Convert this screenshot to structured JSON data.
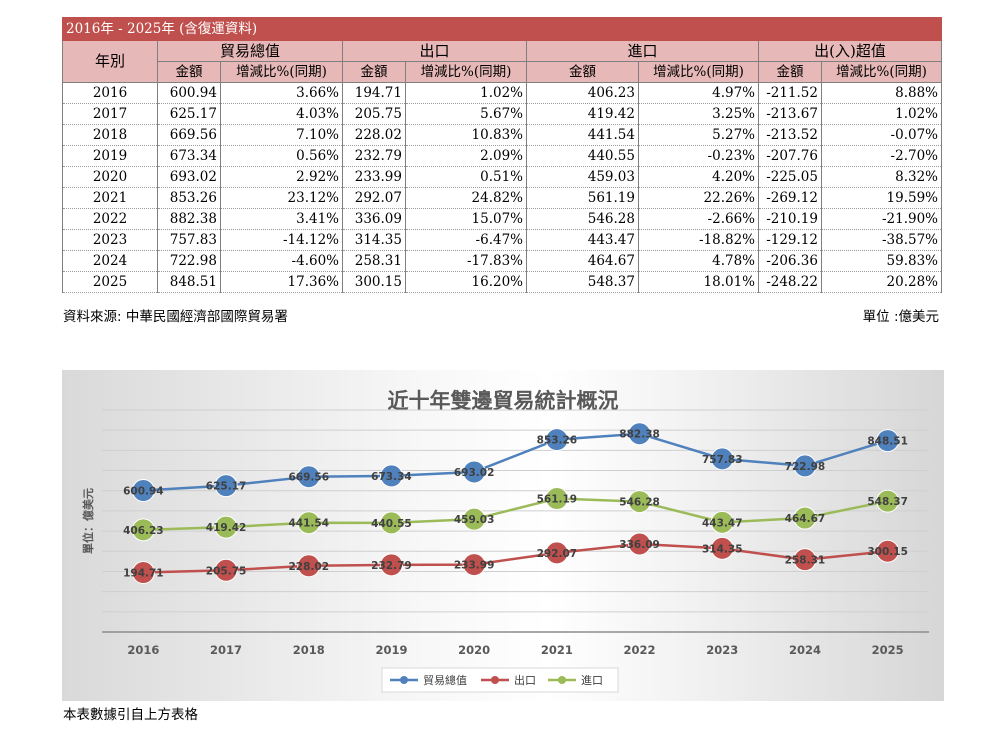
{
  "table": {
    "title": "2016年 - 2025年 (含復運資料)",
    "header": {
      "year": "年別",
      "groups": [
        "貿易總值",
        "出口",
        "進口",
        "出(入)超值"
      ],
      "amount": "金額",
      "change": "增減比%(同期)"
    },
    "rows": [
      [
        "2016",
        "600.94",
        "3.66%",
        "194.71",
        "1.02%",
        "406.23",
        "4.97%",
        "-211.52",
        "8.88%"
      ],
      [
        "2017",
        "625.17",
        "4.03%",
        "205.75",
        "5.67%",
        "419.42",
        "3.25%",
        "-213.67",
        "1.02%"
      ],
      [
        "2018",
        "669.56",
        "7.10%",
        "228.02",
        "10.83%",
        "441.54",
        "5.27%",
        "-213.52",
        "-0.07%"
      ],
      [
        "2019",
        "673.34",
        "0.56%",
        "232.79",
        "2.09%",
        "440.55",
        "-0.23%",
        "-207.76",
        "-2.70%"
      ],
      [
        "2020",
        "693.02",
        "2.92%",
        "233.99",
        "0.51%",
        "459.03",
        "4.20%",
        "-225.05",
        "8.32%"
      ],
      [
        "2021",
        "853.26",
        "23.12%",
        "292.07",
        "24.82%",
        "561.19",
        "22.26%",
        "-269.12",
        "19.59%"
      ],
      [
        "2022",
        "882.38",
        "3.41%",
        "336.09",
        "15.07%",
        "546.28",
        "-2.66%",
        "-210.19",
        "-21.90%"
      ],
      [
        "2023",
        "757.83",
        "-14.12%",
        "314.35",
        "-6.47%",
        "443.47",
        "-18.82%",
        "-129.12",
        "-38.57%"
      ],
      [
        "2024",
        "722.98",
        "-4.60%",
        "258.31",
        "-17.83%",
        "464.67",
        "4.78%",
        "-206.36",
        "59.83%"
      ],
      [
        "2025",
        "848.51",
        "17.36%",
        "300.15",
        "16.20%",
        "548.37",
        "18.01%",
        "-248.22",
        "20.28%"
      ]
    ],
    "source": "資料來源: 中華民國經濟部國際貿易署",
    "unit": "單位 :億美元"
  },
  "chart_data": {
    "type": "line",
    "title": "近十年雙邊貿易統計概況",
    "ylabel": "單位：億美元",
    "xlabel": "",
    "categories": [
      "2016",
      "2017",
      "2018",
      "2019",
      "2020",
      "2021",
      "2022",
      "2023",
      "2024",
      "2025"
    ],
    "series": [
      {
        "name": "貿易總值",
        "color": "#4f81bd",
        "values": [
          600.94,
          625.17,
          669.56,
          673.34,
          693.02,
          853.26,
          882.38,
          757.83,
          722.98,
          848.51
        ]
      },
      {
        "name": "出口",
        "color": "#c0504d",
        "values": [
          194.71,
          205.75,
          228.02,
          232.79,
          233.99,
          292.07,
          336.09,
          314.35,
          258.31,
          300.15
        ]
      },
      {
        "name": "進口",
        "color": "#9bbb59",
        "values": [
          406.23,
          419.42,
          441.54,
          440.55,
          459.03,
          561.19,
          546.28,
          443.47,
          464.67,
          548.37
        ]
      }
    ],
    "ylim": [
      -100,
      1000
    ],
    "legend": "bottom",
    "grid": true
  },
  "footnote": "本表數據引自上方表格"
}
